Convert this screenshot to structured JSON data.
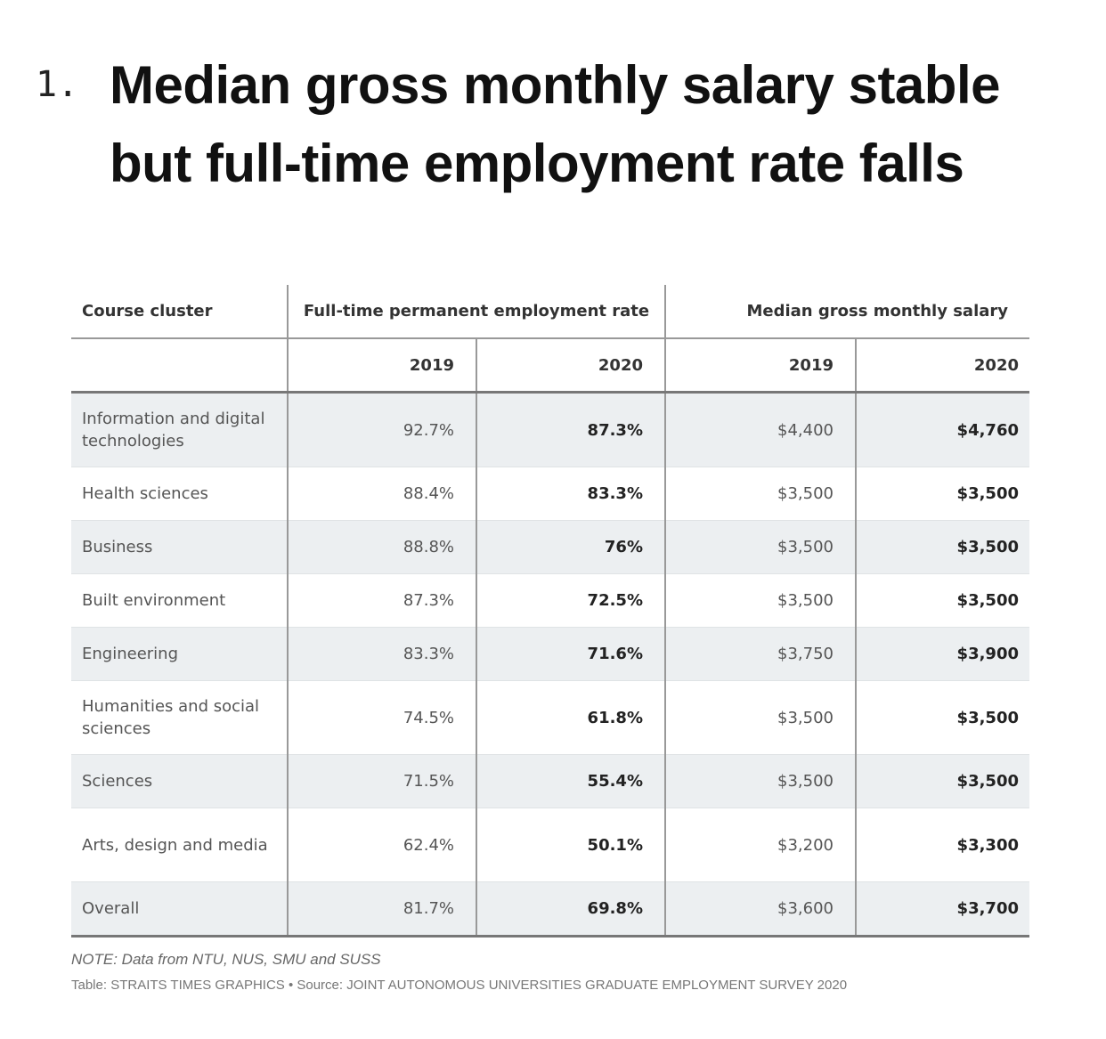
{
  "heading": {
    "number": "1.",
    "title": "Median gross monthly salary stable but full-time employment rate falls"
  },
  "table": {
    "headers": {
      "course_cluster": "Course cluster",
      "employment_rate": "Full-time permanent employment rate",
      "median_salary": "Median gross monthly salary",
      "years": [
        "2019",
        "2020",
        "2019",
        "2020"
      ]
    },
    "rows": [
      {
        "cluster": "Information and digital technologies",
        "emp_2019": "92.7%",
        "emp_2020": "87.3%",
        "sal_2019": "$4,400",
        "sal_2020": "$4,760"
      },
      {
        "cluster": "Health sciences",
        "emp_2019": "88.4%",
        "emp_2020": "83.3%",
        "sal_2019": "$3,500",
        "sal_2020": "$3,500"
      },
      {
        "cluster": "Business",
        "emp_2019": "88.8%",
        "emp_2020": "76%",
        "sal_2019": "$3,500",
        "sal_2020": "$3,500"
      },
      {
        "cluster": "Built environment",
        "emp_2019": "87.3%",
        "emp_2020": "72.5%",
        "sal_2019": "$3,500",
        "sal_2020": "$3,500"
      },
      {
        "cluster": "Engineering",
        "emp_2019": "83.3%",
        "emp_2020": "71.6%",
        "sal_2019": "$3,750",
        "sal_2020": "$3,900"
      },
      {
        "cluster": "Humanities and social sciences",
        "emp_2019": "74.5%",
        "emp_2020": "61.8%",
        "sal_2019": "$3,500",
        "sal_2020": "$3,500"
      },
      {
        "cluster": "Sciences",
        "emp_2019": "71.5%",
        "emp_2020": "55.4%",
        "sal_2019": "$3,500",
        "sal_2020": "$3,500"
      },
      {
        "cluster": "Arts, design and media",
        "emp_2019": "62.4%",
        "emp_2020": "50.1%",
        "sal_2019": "$3,200",
        "sal_2020": "$3,300"
      },
      {
        "cluster": "Overall",
        "emp_2019": "81.7%",
        "emp_2020": "69.8%",
        "sal_2019": "$3,600",
        "sal_2020": "$3,700"
      }
    ]
  },
  "footer": {
    "note": "NOTE: Data from NTU, NUS, SMU and SUSS",
    "source": "Table: STRAITS TIMES GRAPHICS • Source: JOINT AUTONOMOUS UNIVERSITIES GRADUATE EMPLOYMENT SURVEY 2020"
  }
}
